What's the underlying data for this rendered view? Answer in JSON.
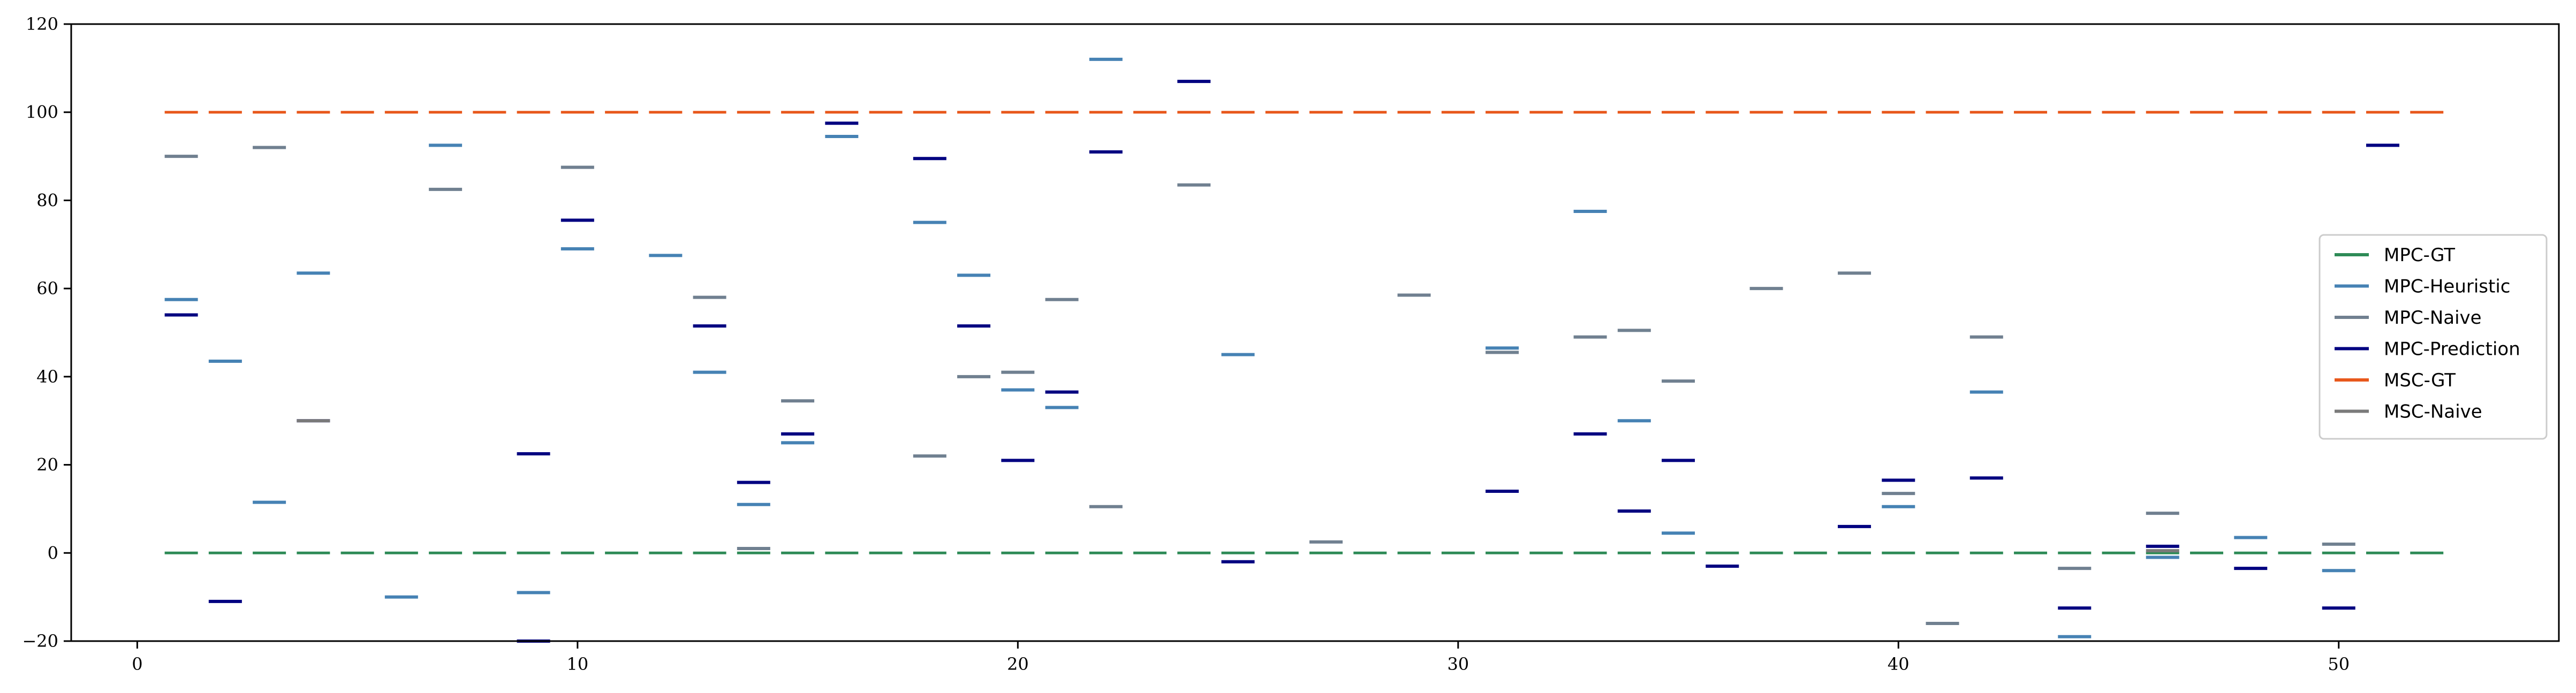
{
  "chart_data": {
    "type": "scatter",
    "marker": "horizontal-dash",
    "title": "",
    "xlabel": "",
    "ylabel": "",
    "xlim": [
      -1.5,
      55
    ],
    "ylim": [
      -20,
      120
    ],
    "x_ticks": [
      0,
      10,
      20,
      30,
      40,
      50
    ],
    "x_tick_labels": [
      "0",
      "10",
      "20",
      "30",
      "40",
      "50"
    ],
    "y_ticks": [
      -20,
      0,
      20,
      40,
      60,
      80,
      100,
      120
    ],
    "y_tick_labels": [
      "−20",
      "0",
      "20",
      "40",
      "60",
      "80",
      "100",
      "120"
    ],
    "grid": false,
    "legend_position": "center-right",
    "series": [
      {
        "name": "MPC-GT",
        "color": "#2e8b57",
        "style": "dashed",
        "points": [
          [
            1,
            0
          ],
          [
            2,
            0
          ],
          [
            3,
            0
          ],
          [
            4,
            0
          ],
          [
            5,
            0
          ],
          [
            6,
            0
          ],
          [
            7,
            0
          ],
          [
            8,
            0
          ],
          [
            9,
            0
          ],
          [
            10,
            0
          ],
          [
            11,
            0
          ],
          [
            12,
            0
          ],
          [
            13,
            0
          ],
          [
            14,
            0
          ],
          [
            15,
            0
          ],
          [
            16,
            0
          ],
          [
            17,
            0
          ],
          [
            18,
            0
          ],
          [
            19,
            0
          ],
          [
            20,
            0
          ],
          [
            21,
            0
          ],
          [
            22,
            0
          ],
          [
            23,
            0
          ],
          [
            24,
            0
          ],
          [
            25,
            0
          ],
          [
            26,
            0
          ],
          [
            27,
            0
          ],
          [
            28,
            0
          ],
          [
            29,
            0
          ],
          [
            30,
            0
          ],
          [
            31,
            0
          ],
          [
            32,
            0
          ],
          [
            33,
            0
          ],
          [
            34,
            0
          ],
          [
            35,
            0
          ],
          [
            36,
            0
          ],
          [
            37,
            0
          ],
          [
            38,
            0
          ],
          [
            39,
            0
          ],
          [
            40,
            0
          ],
          [
            41,
            0
          ],
          [
            42,
            0
          ],
          [
            43,
            0
          ],
          [
            44,
            0
          ],
          [
            45,
            0
          ],
          [
            46,
            0
          ],
          [
            47,
            0
          ],
          [
            48,
            0
          ],
          [
            49,
            0
          ],
          [
            50,
            0
          ],
          [
            51,
            0
          ],
          [
            52,
            0
          ]
        ]
      },
      {
        "name": "MPC-Heuristic",
        "color": "#4682b4",
        "style": "dash",
        "points": [
          [
            1,
            57.5
          ],
          [
            2,
            43.5
          ],
          [
            3,
            11.5
          ],
          [
            4,
            63.5
          ],
          [
            6,
            -10
          ],
          [
            7,
            92.5
          ],
          [
            9,
            -9
          ],
          [
            10,
            69
          ],
          [
            12,
            67.5
          ],
          [
            13,
            41
          ],
          [
            14,
            11
          ],
          [
            15,
            25
          ],
          [
            16,
            94.5
          ],
          [
            18,
            75
          ],
          [
            19,
            63
          ],
          [
            20,
            37
          ],
          [
            21,
            33
          ],
          [
            22,
            112
          ],
          [
            25,
            45
          ],
          [
            31,
            46.5
          ],
          [
            33,
            77.5
          ],
          [
            34,
            30
          ],
          [
            35,
            4.5
          ],
          [
            40,
            10.5
          ],
          [
            42,
            36.5
          ],
          [
            44,
            -19
          ],
          [
            46,
            -1
          ],
          [
            48,
            3.5
          ],
          [
            50,
            -4
          ]
        ]
      },
      {
        "name": "MPC-Naive",
        "color": "#708090",
        "style": "dash",
        "points": [
          [
            1,
            90
          ],
          [
            3,
            92
          ],
          [
            7,
            82.5
          ],
          [
            10,
            87.5
          ],
          [
            13,
            58
          ],
          [
            14,
            1
          ],
          [
            15,
            34.5
          ],
          [
            18,
            22
          ],
          [
            19,
            40
          ],
          [
            20,
            41
          ],
          [
            21,
            57.5
          ],
          [
            22,
            10.5
          ],
          [
            24,
            83.5
          ],
          [
            27,
            2.5
          ],
          [
            29,
            58.5
          ],
          [
            31,
            45.5
          ],
          [
            33,
            49
          ],
          [
            34,
            50.5
          ],
          [
            35,
            39
          ],
          [
            37,
            60
          ],
          [
            39,
            63.5
          ],
          [
            40,
            13.5
          ],
          [
            41,
            -16
          ],
          [
            42,
            49
          ],
          [
            44,
            -3.5
          ],
          [
            46,
            9
          ],
          [
            50,
            2
          ]
        ]
      },
      {
        "name": "MPC-Prediction",
        "color": "#000080",
        "style": "dash",
        "points": [
          [
            1,
            54
          ],
          [
            2,
            -11
          ],
          [
            4,
            30
          ],
          [
            9,
            22.5
          ],
          [
            9,
            -20
          ],
          [
            10,
            75.5
          ],
          [
            13,
            51.5
          ],
          [
            14,
            16
          ],
          [
            15,
            27
          ],
          [
            16,
            97.5
          ],
          [
            18,
            89.5
          ],
          [
            19,
            51.5
          ],
          [
            20,
            21
          ],
          [
            21,
            36.5
          ],
          [
            22,
            91
          ],
          [
            24,
            107
          ],
          [
            25,
            -2
          ],
          [
            31,
            14
          ],
          [
            33,
            27
          ],
          [
            34,
            9.5
          ],
          [
            35,
            21
          ],
          [
            36,
            -3
          ],
          [
            39,
            6
          ],
          [
            40,
            16.5
          ],
          [
            42,
            17
          ],
          [
            44,
            -12.5
          ],
          [
            46,
            1.5
          ],
          [
            48,
            -3.5
          ],
          [
            50,
            -12.5
          ],
          [
            51,
            92.5
          ]
        ]
      },
      {
        "name": "MSC-GT",
        "color": "#e8581c",
        "style": "dashed",
        "points": [
          [
            1,
            100
          ],
          [
            2,
            100
          ],
          [
            3,
            100
          ],
          [
            4,
            100
          ],
          [
            5,
            100
          ],
          [
            6,
            100
          ],
          [
            7,
            100
          ],
          [
            8,
            100
          ],
          [
            9,
            100
          ],
          [
            10,
            100
          ],
          [
            11,
            100
          ],
          [
            12,
            100
          ],
          [
            13,
            100
          ],
          [
            14,
            100
          ],
          [
            15,
            100
          ],
          [
            16,
            100
          ],
          [
            17,
            100
          ],
          [
            18,
            100
          ],
          [
            19,
            100
          ],
          [
            20,
            100
          ],
          [
            21,
            100
          ],
          [
            22,
            100
          ],
          [
            23,
            100
          ],
          [
            24,
            100
          ],
          [
            25,
            100
          ],
          [
            26,
            100
          ],
          [
            27,
            100
          ],
          [
            28,
            100
          ],
          [
            29,
            100
          ],
          [
            30,
            100
          ],
          [
            31,
            100
          ],
          [
            32,
            100
          ],
          [
            33,
            100
          ],
          [
            34,
            100
          ],
          [
            35,
            100
          ],
          [
            36,
            100
          ],
          [
            37,
            100
          ],
          [
            38,
            100
          ],
          [
            39,
            100
          ],
          [
            40,
            100
          ],
          [
            41,
            100
          ],
          [
            42,
            100
          ],
          [
            43,
            100
          ],
          [
            44,
            100
          ],
          [
            45,
            100
          ],
          [
            46,
            100
          ],
          [
            47,
            100
          ],
          [
            48,
            100
          ],
          [
            49,
            100
          ],
          [
            50,
            100
          ],
          [
            51,
            100
          ],
          [
            52,
            100
          ]
        ]
      },
      {
        "name": "MSC-Naive",
        "color": "#7a7a7a",
        "style": "dash",
        "points": [
          [
            4,
            30
          ],
          [
            46,
            0.5
          ]
        ]
      }
    ]
  }
}
